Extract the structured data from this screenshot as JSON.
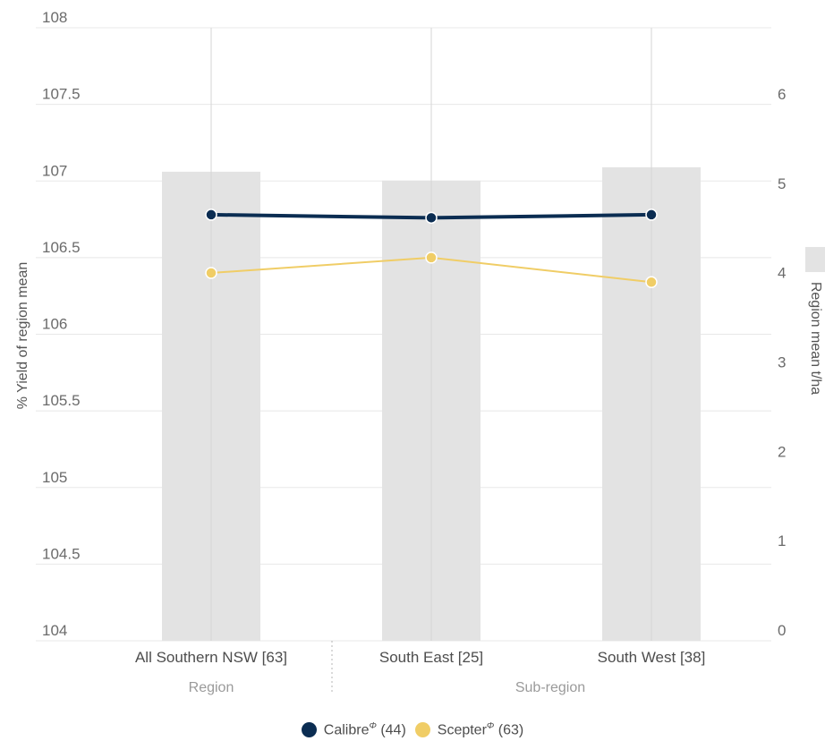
{
  "chart_data": {
    "type": "bar",
    "categories": [
      "All Southern NSW [63]",
      "South East [25]",
      "South West [38]"
    ],
    "groups": [
      {
        "label": "Region",
        "categories": [
          "All Southern NSW [63]"
        ]
      },
      {
        "label": "Sub-region",
        "categories": [
          "South East [25]",
          "South West [38]"
        ]
      }
    ],
    "bar_series": {
      "axis": "right",
      "values": [
        5.25,
        5.15,
        5.3
      ],
      "color": "#e3e3e3"
    },
    "series": [
      {
        "name": "Calibre",
        "name_sup": "Φ",
        "count_label": "(44)",
        "axis": "left",
        "values": [
          106.78,
          106.76,
          106.78
        ],
        "color": "#0b2d52"
      },
      {
        "name": "Scepter",
        "name_sup": "Φ",
        "count_label": "(63)",
        "axis": "left",
        "values": [
          106.4,
          106.5,
          106.34
        ],
        "color": "#f0cd66"
      }
    ],
    "ylabel": "% Yield of region mean",
    "y2label": "Region mean t/ha",
    "ylim": [
      104,
      108
    ],
    "yticks": [
      "104",
      "104.5",
      "105",
      "105.5",
      "106",
      "106.5",
      "107",
      "107.5",
      "108"
    ],
    "y2lim": [
      0,
      7
    ],
    "y2ticks": [
      "0",
      "1",
      "2",
      "3",
      "4",
      "5",
      "6"
    ],
    "grid": true,
    "legend_position": "bottom"
  }
}
